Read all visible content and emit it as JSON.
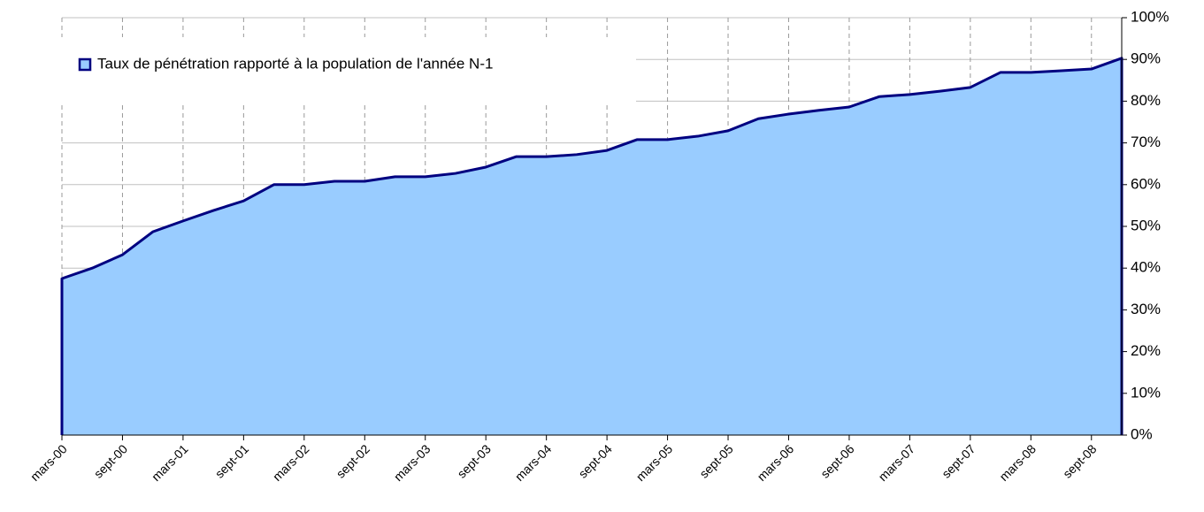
{
  "chart_data": {
    "type": "area",
    "categories": [
      "mars-00",
      null,
      "sept-00",
      null,
      "mars-01",
      null,
      "sept-01",
      null,
      "mars-02",
      null,
      "sept-02",
      null,
      "mars-03",
      null,
      "sept-03",
      null,
      "mars-04",
      null,
      "sept-04",
      null,
      "mars-05",
      null,
      "sept-05",
      null,
      "mars-06",
      null,
      "sept-06",
      null,
      "mars-07",
      null,
      "sept-07",
      null,
      "mars-08",
      null,
      "sept-08",
      null
    ],
    "series": [
      {
        "name": "Taux de pénétration rapporté à la population de l'année N-1",
        "color": "#99ccff",
        "line_color": "#000080",
        "values": [
          37.5,
          40,
          43.2,
          48.7,
          51.3,
          53.8,
          56.1,
          60,
          60,
          60.8,
          60.8,
          61.9,
          61.9,
          62.7,
          64.2,
          66.7,
          66.7,
          67.2,
          68.2,
          70.8,
          70.8,
          71.6,
          72.9,
          75.8,
          76.9,
          77.8,
          78.6,
          81.1,
          81.6,
          82.4,
          83.3,
          86.9,
          86.9,
          87.3,
          87.7,
          90.3
        ]
      }
    ],
    "ylim": [
      0,
      100
    ],
    "yticks": [
      {
        "value": 0,
        "label": "0%"
      },
      {
        "value": 10,
        "label": "10%"
      },
      {
        "value": 20,
        "label": "20%"
      },
      {
        "value": 30,
        "label": "30%"
      },
      {
        "value": 40,
        "label": "40%"
      },
      {
        "value": 50,
        "label": "50%"
      },
      {
        "value": 60,
        "label": "60%"
      },
      {
        "value": 70,
        "label": "70%"
      },
      {
        "value": 80,
        "label": "80%"
      },
      {
        "value": 90,
        "label": "90%"
      },
      {
        "value": 100,
        "label": "100%"
      }
    ],
    "grid": true,
    "legend": "top-left",
    "y_axis_side": "right"
  }
}
